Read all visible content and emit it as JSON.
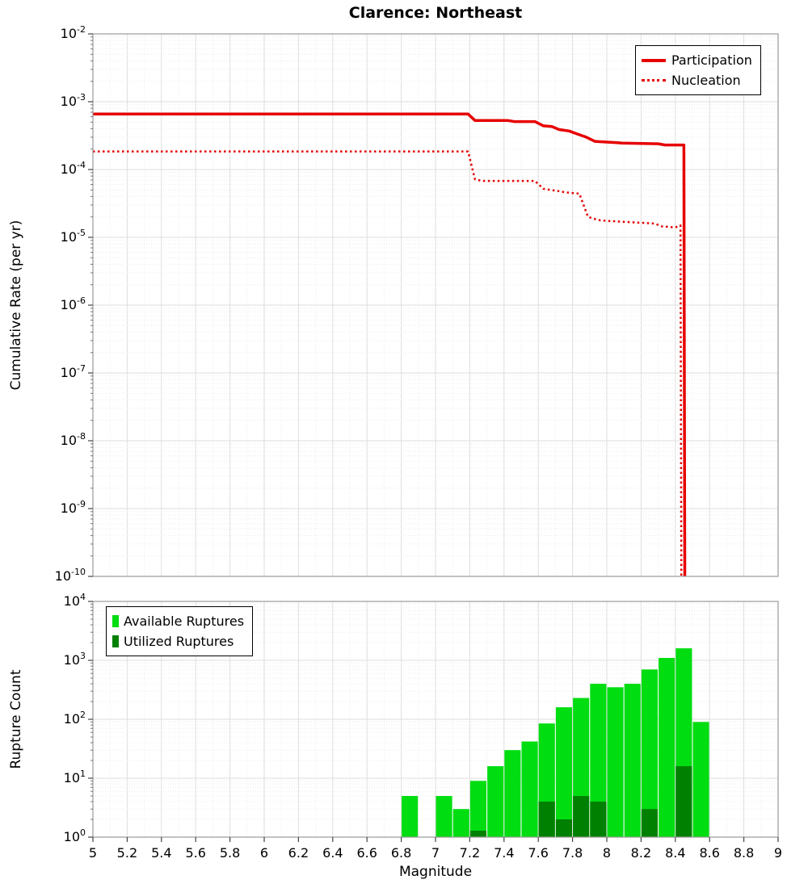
{
  "title": "Clarence: Northeast",
  "xlabel": "Magnitude",
  "top_chart": {
    "ylabel": "Cumulative Rate (per yr)",
    "legend": [
      {
        "label": "Participation",
        "style": "solid"
      },
      {
        "label": "Nucleation",
        "style": "dotted"
      }
    ]
  },
  "bottom_chart": {
    "ylabel": "Rupture Count",
    "legend": [
      {
        "label": "Available Ruptures"
      },
      {
        "label": "Utilized Ruptures"
      }
    ]
  },
  "colors": {
    "rate_lines": "#e60000",
    "available_bars": "#00dd11",
    "utilized_bars": "#008000",
    "grid_major": "#dedede",
    "grid_minor": "#ececec",
    "plot_border": "#999999"
  },
  "chart_data": [
    {
      "type": "line",
      "title": "Clarence: Northeast",
      "xlabel": "Magnitude",
      "ylabel": "Cumulative Rate (per yr)",
      "xlim": [
        5,
        9
      ],
      "y_max_exp": -2,
      "y_min_exp": -10,
      "y_tick_exponents": [
        -2,
        -3,
        -4,
        -5,
        -6,
        -7,
        -8,
        -9,
        -10
      ],
      "grid": true,
      "legend_position": "top-right",
      "series": [
        {
          "name": "Participation",
          "color": "#e60000",
          "line_style": "solid",
          "line_width": 3.5,
          "points": [
            [
              5.0,
              0.00066
            ],
            [
              7.19,
              0.00066
            ],
            [
              7.23,
              0.00053
            ],
            [
              7.42,
              0.00053
            ],
            [
              7.46,
              0.00051
            ],
            [
              7.58,
              0.00051
            ],
            [
              7.63,
              0.00044
            ],
            [
              7.68,
              0.00043
            ],
            [
              7.72,
              0.00039
            ],
            [
              7.78,
              0.00037
            ],
            [
              7.82,
              0.00034
            ],
            [
              7.88,
              0.0003
            ],
            [
              7.93,
              0.00026
            ],
            [
              8.05,
              0.00025
            ],
            [
              8.09,
              0.000245
            ],
            [
              8.3,
              0.00024
            ],
            [
              8.34,
              0.00023
            ],
            [
              8.45,
              0.00023
            ],
            [
              8.455,
              1e-10
            ]
          ]
        },
        {
          "name": "Nucleation",
          "color": "#e60000",
          "line_style": "dotted",
          "line_width": 2.5,
          "points": [
            [
              5.0,
              0.000185
            ],
            [
              7.19,
              0.000185
            ],
            [
              7.23,
              7.2e-05
            ],
            [
              7.27,
              6.8e-05
            ],
            [
              7.58,
              6.8e-05
            ],
            [
              7.63,
              5.2e-05
            ],
            [
              7.72,
              4.8e-05
            ],
            [
              7.76,
              4.6e-05
            ],
            [
              7.84,
              4.4e-05
            ],
            [
              7.89,
              2e-05
            ],
            [
              7.95,
              1.8e-05
            ],
            [
              8.0,
              1.75e-05
            ],
            [
              8.28,
              1.6e-05
            ],
            [
              8.32,
              1.45e-05
            ],
            [
              8.4,
              1.4e-05
            ],
            [
              8.43,
              1.5e-05
            ],
            [
              8.435,
              1e-10
            ]
          ]
        }
      ]
    },
    {
      "type": "bar",
      "xlabel": "Magnitude",
      "ylabel": "Rupture Count",
      "xlim": [
        5,
        9
      ],
      "y_max_exp": 4,
      "y_min_exp": 0,
      "y_tick_exponents": [
        4,
        3,
        2,
        1,
        0
      ],
      "grid": true,
      "legend_position": "top-left",
      "bin_width": 0.1,
      "bar_width": 0.095,
      "categories": [
        6.85,
        7.05,
        7.15,
        7.25,
        7.35,
        7.45,
        7.55,
        7.65,
        7.75,
        7.85,
        7.95,
        8.05,
        8.15,
        8.25,
        8.35,
        8.45,
        8.55
      ],
      "series": [
        {
          "name": "Available Ruptures",
          "color": "#00dd11",
          "values": [
            5,
            5,
            3,
            9,
            16,
            30,
            42,
            85,
            160,
            230,
            400,
            350,
            400,
            700,
            1100,
            1600,
            90
          ]
        },
        {
          "name": "Utilized Ruptures",
          "color": "#008000",
          "values": [
            0,
            0,
            0,
            1,
            0,
            0,
            0,
            4,
            2,
            5,
            4,
            0,
            0,
            3,
            0,
            16,
            0
          ]
        }
      ],
      "x_tick_labels": [
        "5",
        "5.2",
        "5.4",
        "5.6",
        "5.8",
        "6",
        "6.2",
        "6.4",
        "6.6",
        "6.8",
        "7",
        "7.2",
        "7.4",
        "7.6",
        "7.8",
        "8",
        "8.2",
        "8.4",
        "8.6",
        "8.8",
        "9"
      ]
    }
  ]
}
